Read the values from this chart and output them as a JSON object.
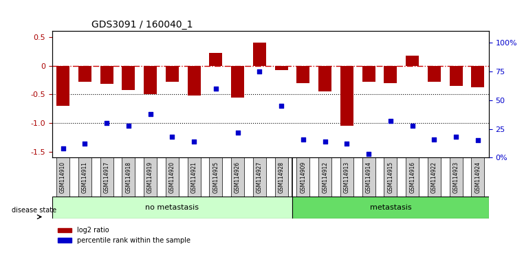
{
  "title": "GDS3091 / 160040_1",
  "samples": [
    "GSM114910",
    "GSM114911",
    "GSM114917",
    "GSM114918",
    "GSM114919",
    "GSM114920",
    "GSM114921",
    "GSM114925",
    "GSM114926",
    "GSM114927",
    "GSM114928",
    "GSM114909",
    "GSM114912",
    "GSM114913",
    "GSM114914",
    "GSM114915",
    "GSM114916",
    "GSM114922",
    "GSM114923",
    "GSM114924"
  ],
  "log2_ratio": [
    -0.7,
    -0.28,
    -0.32,
    -0.42,
    -0.5,
    -0.28,
    -0.52,
    0.22,
    -0.55,
    0.4,
    -0.08,
    -0.3,
    -0.45,
    -1.05,
    -0.28,
    -0.3,
    0.18,
    -0.28,
    -0.35,
    -0.38
  ],
  "percentile": [
    8,
    12,
    30,
    28,
    38,
    18,
    14,
    60,
    22,
    75,
    45,
    16,
    14,
    12,
    3,
    32,
    28,
    16,
    18,
    15
  ],
  "no_metastasis_count": 11,
  "bar_color": "#aa0000",
  "dot_color": "#0000cc",
  "dashed_line_color": "#cc0000",
  "dotted_line_color": "#000000",
  "ylim_left": [
    -1.6,
    0.6
  ],
  "ylim_right": [
    0,
    110
  ],
  "yticks_left": [
    -1.5,
    -1.0,
    -0.5,
    0,
    0.5
  ],
  "yticks_right": [
    0,
    25,
    50,
    75,
    100
  ],
  "ytick_labels_right": [
    "0%",
    "25",
    "50",
    "75",
    "100%"
  ],
  "no_metastasis_color": "#ccffcc",
  "metastasis_color": "#66dd66",
  "bar_width": 0.6,
  "disease_state_label": "disease state",
  "no_metastasis_label": "no metastasis",
  "metastasis_label": "metastasis",
  "legend_bar_label": "log2 ratio",
  "legend_dot_label": "percentile rank within the sample"
}
